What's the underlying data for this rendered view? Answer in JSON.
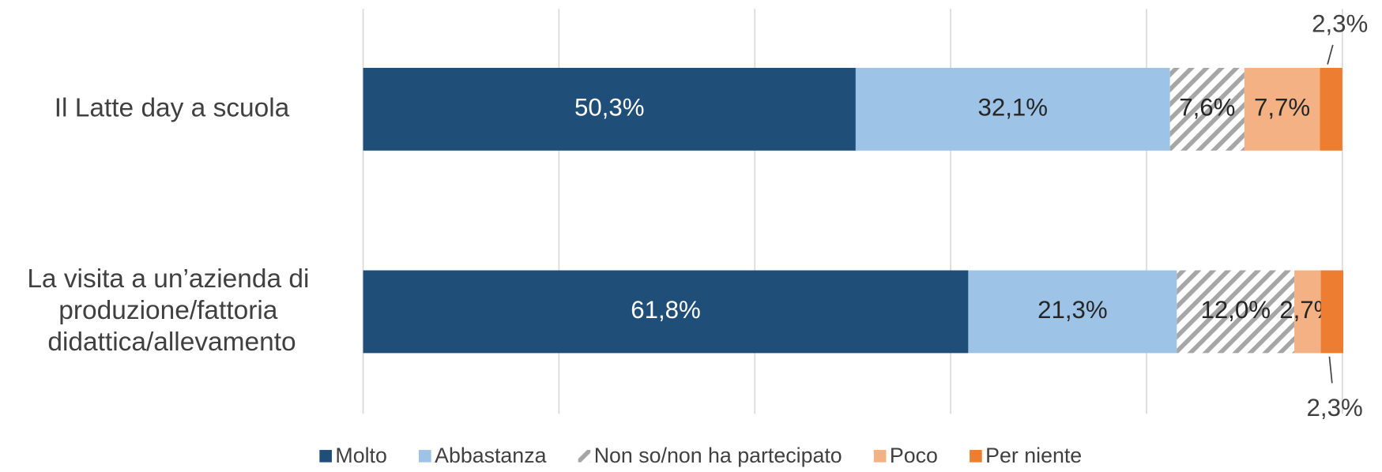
{
  "chart_data": {
    "type": "stacked-bar-horizontal",
    "categories": [
      "Il Latte day a scuola",
      "La visita a un’azienda di produzione/fattoria didattica/allevamento"
    ],
    "series": [
      {
        "name": "Molto",
        "color": "#1f4e79",
        "values": [
          50.3,
          61.8
        ],
        "value_labels": [
          "50,3%",
          "61,8%"
        ]
      },
      {
        "name": "Abbastanza",
        "color": "#9dc3e6",
        "values": [
          32.1,
          21.3
        ],
        "value_labels": [
          "32,1%",
          "21,3%"
        ]
      },
      {
        "name": "Non so/non ha partecipato",
        "color": "hatch",
        "values": [
          7.6,
          12.0
        ],
        "value_labels": [
          "7,6%",
          "12,0%"
        ]
      },
      {
        "name": "Poco",
        "color": "#f4b183",
        "values": [
          7.7,
          2.7
        ],
        "value_labels": [
          "7,7%",
          "2,7%"
        ]
      },
      {
        "name": "Per niente",
        "color": "#ed7d31",
        "values": [
          2.3,
          2.3
        ],
        "value_labels": [
          "2,3%",
          "2,3%"
        ]
      }
    ],
    "xlim": [
      0,
      100
    ],
    "xticks": [
      0,
      20,
      40,
      60,
      80,
      100
    ],
    "grid": true,
    "legend": "bottom"
  }
}
